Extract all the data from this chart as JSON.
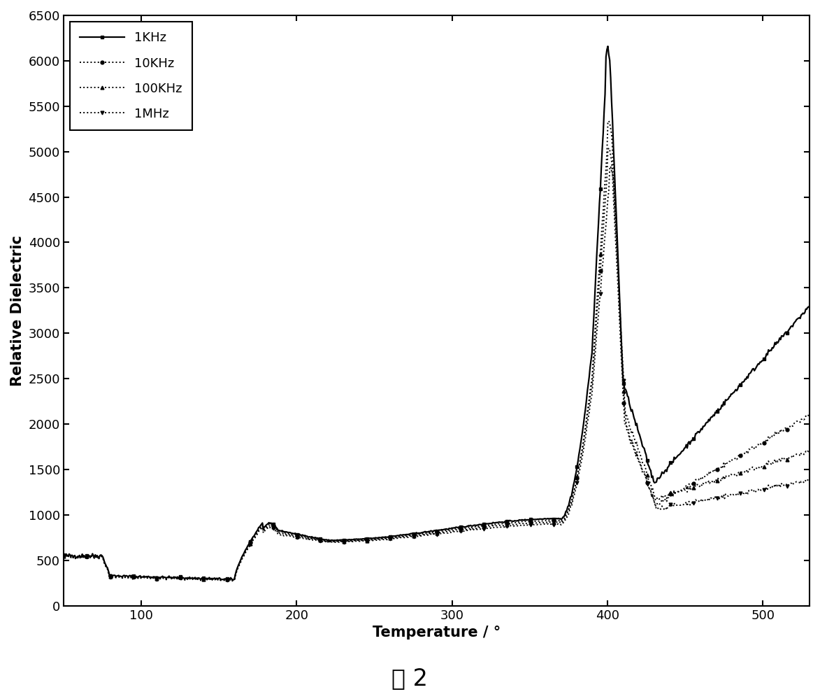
{
  "title": "",
  "xlabel": "Temperature / °",
  "ylabel": "Relative Dielectric",
  "caption": "图 2",
  "xlim": [
    50,
    530
  ],
  "ylim": [
    0,
    6500
  ],
  "yticks": [
    0,
    500,
    1000,
    1500,
    2000,
    2500,
    3000,
    3500,
    4000,
    4500,
    5000,
    5500,
    6000,
    6500
  ],
  "xticks": [
    100,
    200,
    300,
    400,
    500
  ],
  "legend_labels": [
    "1KHz",
    "10KHz",
    "100KHz",
    "1MHz"
  ],
  "background_color": "#ffffff",
  "figsize": [
    11.73,
    9.99
  ],
  "dpi": 100
}
